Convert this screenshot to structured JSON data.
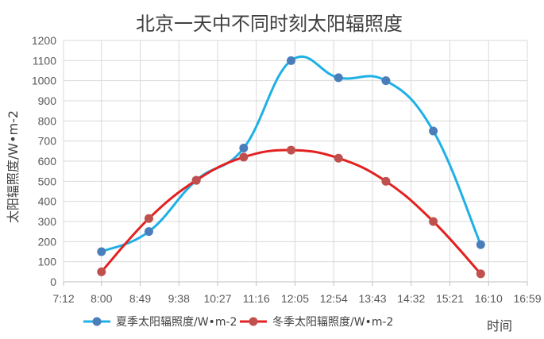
{
  "chart_data": {
    "type": "line",
    "title": "北京一天中不同时刻太阳辐照度",
    "xlabel": "时间",
    "ylabel": "太阳辐照度/W•m-2",
    "ylim": [
      0,
      1200
    ],
    "xlim": [
      "7:12",
      "16:59"
    ],
    "x_ticks": [
      "7:12",
      "8:00",
      "8:49",
      "9:38",
      "10:27",
      "11:16",
      "12:05",
      "12:54",
      "13:43",
      "14:32",
      "15:21",
      "16:10",
      "16:59"
    ],
    "y_ticks": [
      0,
      100,
      200,
      300,
      400,
      500,
      600,
      700,
      800,
      900,
      1000,
      1100,
      1200
    ],
    "grid": true,
    "legend_position": "bottom",
    "series": [
      {
        "name": "夏季太阳辐照度/W•m-2",
        "color": "#1FB0E6",
        "marker_color": "#4A7EBB",
        "smooth": true,
        "points": [
          {
            "x": "8:00",
            "y": 150
          },
          {
            "x": "8:60",
            "y": 250
          },
          {
            "x": "10:00",
            "y": 505
          },
          {
            "x": "11:00",
            "y": 665
          },
          {
            "x": "12:00",
            "y": 1100
          },
          {
            "x": "13:00",
            "y": 1015
          },
          {
            "x": "14:00",
            "y": 1000
          },
          {
            "x": "15:00",
            "y": 750
          },
          {
            "x": "16:00",
            "y": 185
          }
        ]
      },
      {
        "name": "冬季太阳辐照度/W•m-2",
        "color": "#E32121",
        "marker_color": "#C0504D",
        "smooth": true,
        "points": [
          {
            "x": "8:00",
            "y": 50
          },
          {
            "x": "8:60",
            "y": 315
          },
          {
            "x": "10:00",
            "y": 505
          },
          {
            "x": "11:00",
            "y": 620
          },
          {
            "x": "12:00",
            "y": 655
          },
          {
            "x": "13:00",
            "y": 615
          },
          {
            "x": "14:00",
            "y": 500
          },
          {
            "x": "15:00",
            "y": 300
          },
          {
            "x": "16:00",
            "y": 40
          }
        ]
      }
    ]
  }
}
